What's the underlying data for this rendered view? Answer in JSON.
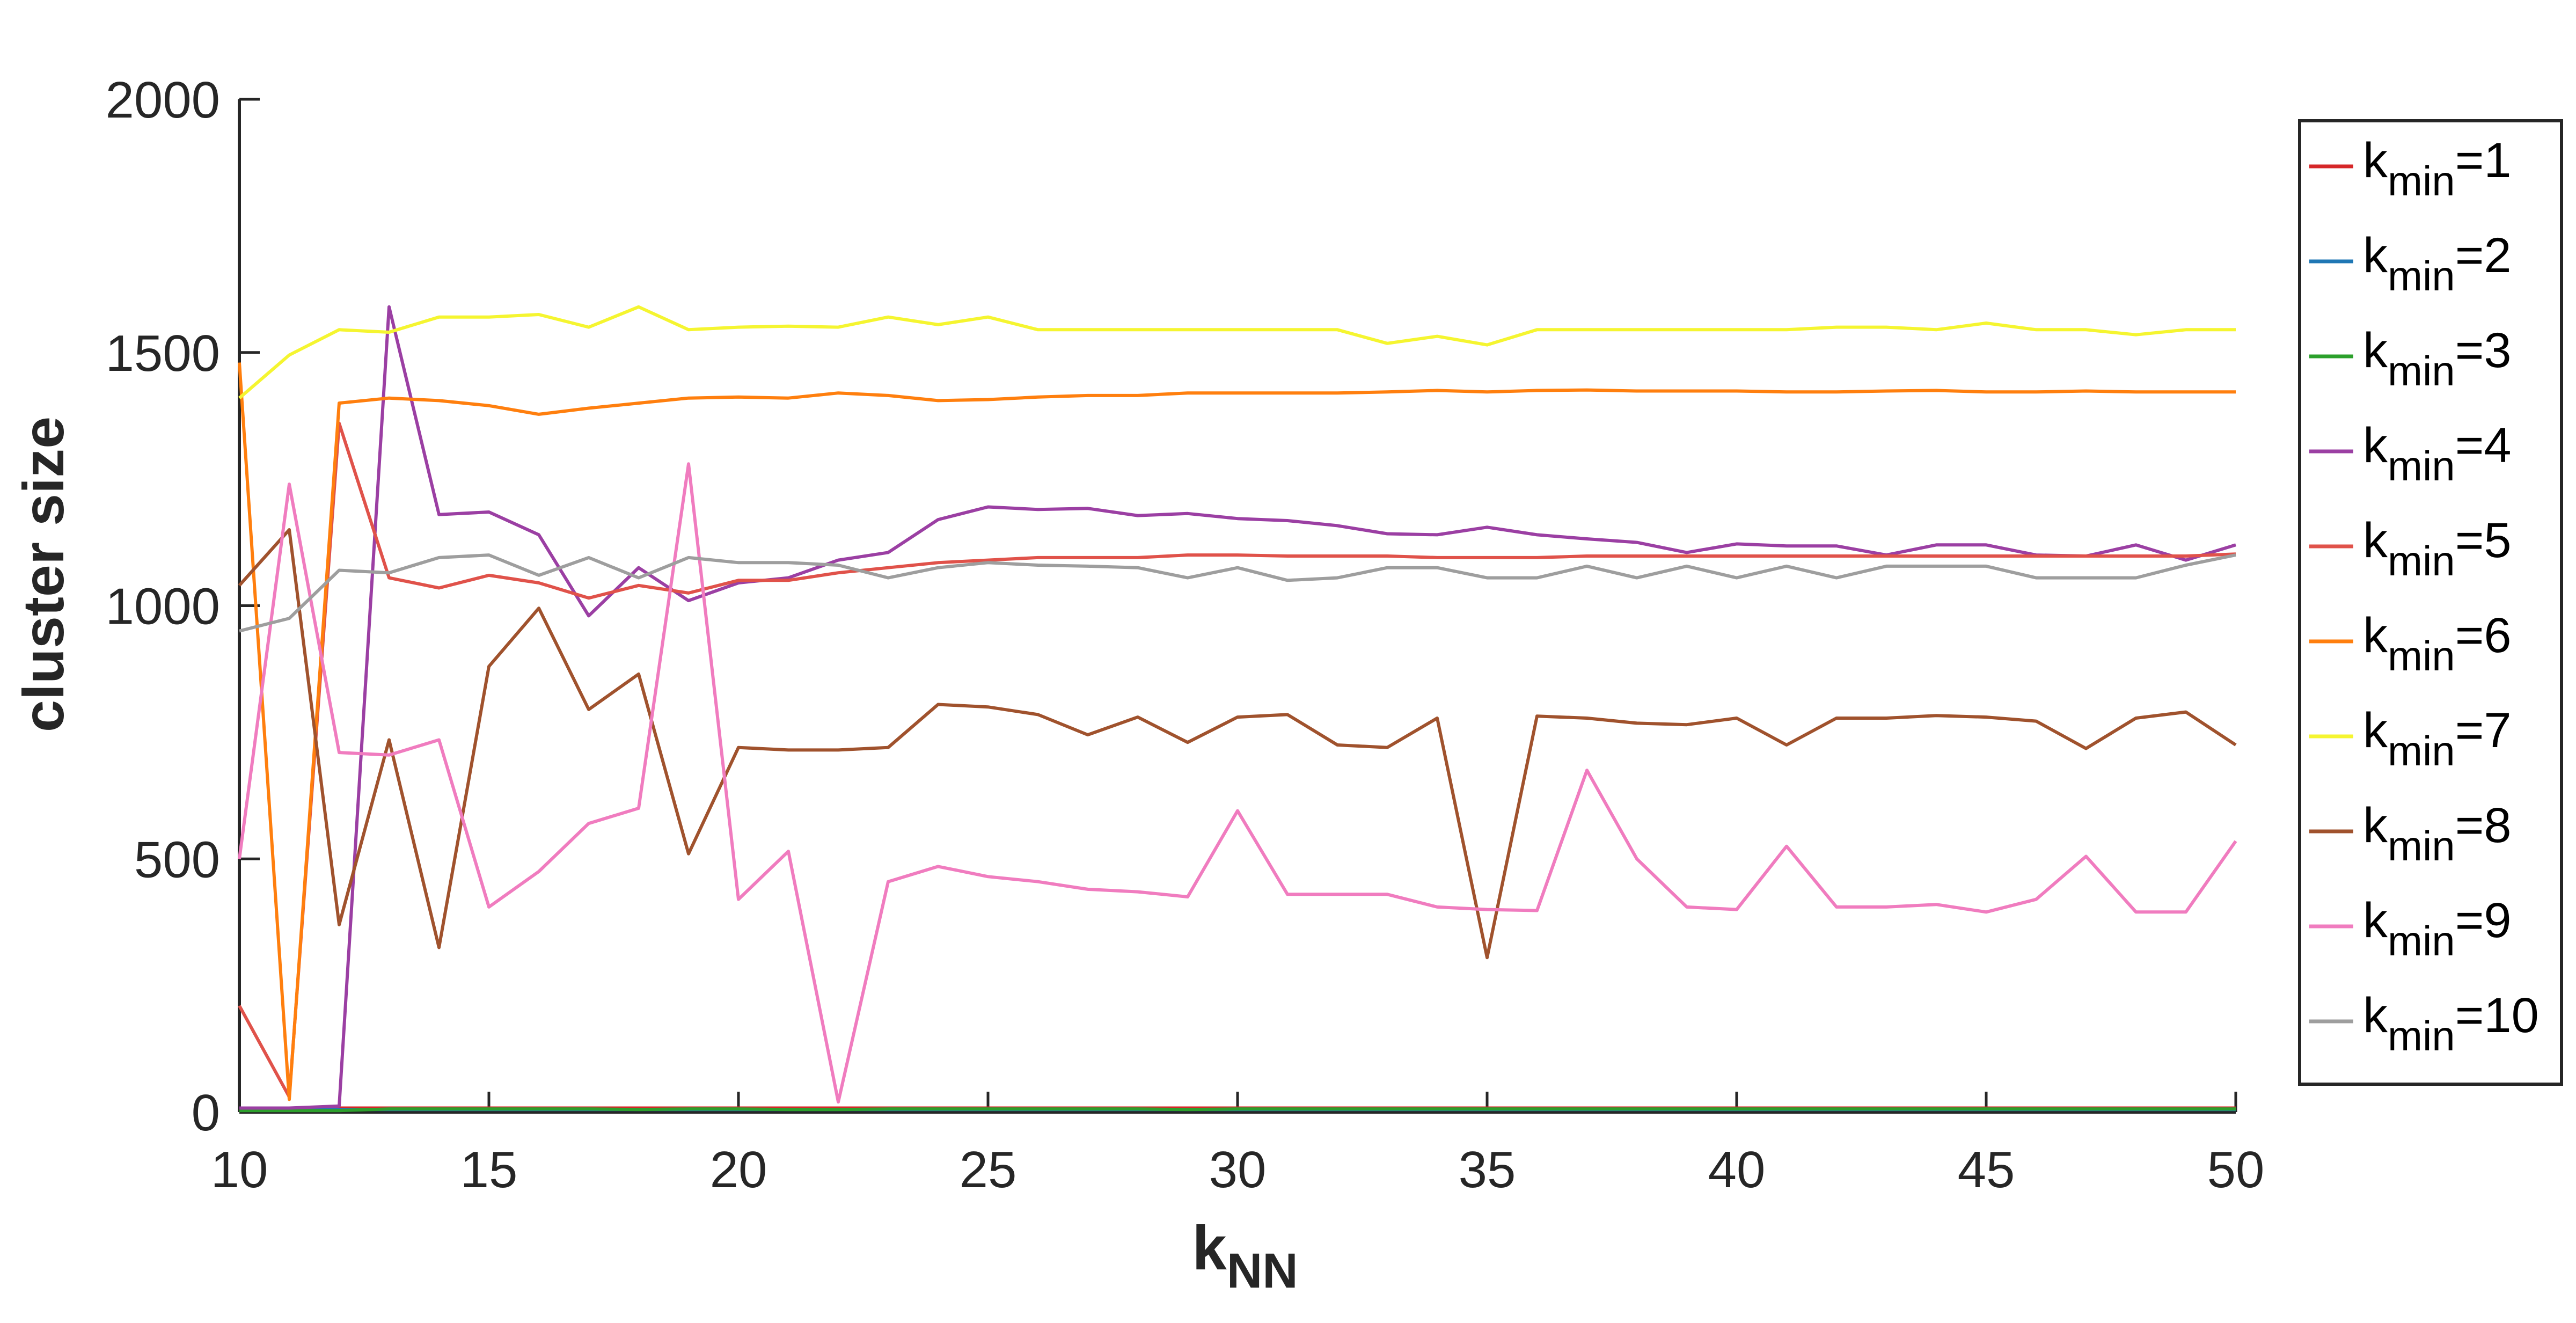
{
  "chart_data": {
    "type": "line",
    "xlabel": "k",
    "xlabel_sub": "NN",
    "ylabel": "cluster size",
    "xlim": [
      10,
      50
    ],
    "ylim": [
      0,
      2000
    ],
    "xticks": [
      "10",
      "15",
      "20",
      "25",
      "30",
      "35",
      "40",
      "45",
      "50"
    ],
    "yticks": [
      "0",
      "500",
      "1000",
      "1500",
      "2000"
    ],
    "grid": false,
    "legend_position": "right-outside",
    "x": [
      10,
      11,
      12,
      13,
      14,
      15,
      16,
      17,
      18,
      19,
      20,
      21,
      22,
      23,
      24,
      25,
      26,
      27,
      28,
      29,
      30,
      31,
      32,
      33,
      34,
      35,
      36,
      37,
      38,
      39,
      40,
      41,
      42,
      43,
      44,
      45,
      46,
      47,
      48,
      49,
      50
    ],
    "series": [
      {
        "name": "k",
        "sub": "min",
        "suffix": "=1",
        "color": "#d62728",
        "values": [
          8,
          8,
          8,
          8,
          8,
          8,
          8,
          8,
          8,
          8,
          8,
          8,
          8,
          8,
          8,
          8,
          8,
          8,
          8,
          8,
          8,
          8,
          8,
          8,
          8,
          8,
          8,
          8,
          8,
          8,
          8,
          8,
          8,
          8,
          8,
          8,
          8,
          8,
          8,
          8,
          8
        ]
      },
      {
        "name": "k",
        "sub": "min",
        "suffix": "=2",
        "color": "#1f77b4",
        "values": [
          5,
          5,
          5,
          5,
          5,
          5,
          5,
          5,
          5,
          5,
          5,
          5,
          5,
          5,
          5,
          5,
          5,
          5,
          5,
          5,
          5,
          5,
          5,
          5,
          5,
          5,
          5,
          5,
          5,
          5,
          5,
          5,
          5,
          5,
          5,
          5,
          5,
          5,
          5,
          5,
          5
        ]
      },
      {
        "name": "k",
        "sub": "min",
        "suffix": "=3",
        "color": "#2ca02c",
        "values": [
          3,
          3,
          3,
          6,
          6,
          6,
          6,
          6,
          5,
          6,
          6,
          5,
          5,
          6,
          6,
          6,
          6,
          6,
          6,
          5,
          6,
          6,
          6,
          6,
          6,
          6,
          6,
          6,
          6,
          6,
          6,
          6,
          6,
          6,
          6,
          6,
          6,
          6,
          6,
          6,
          6
        ]
      },
      {
        "name": "k",
        "sub": "min",
        "suffix": "=4",
        "color": "#9b3fa3",
        "values": [
          8,
          8,
          12,
          1590,
          1180,
          1185,
          1140,
          980,
          1075,
          1010,
          1045,
          1055,
          1090,
          1105,
          1170,
          1195,
          1190,
          1192,
          1178,
          1182,
          1172,
          1168,
          1158,
          1142,
          1140,
          1155,
          1140,
          1132,
          1125,
          1105,
          1122,
          1118,
          1118,
          1100,
          1120,
          1120,
          1100,
          1098,
          1120,
          1090,
          1120
        ]
      },
      {
        "name": "k",
        "sub": "min",
        "suffix": "=5",
        "color": "#e0524a",
        "values": [
          210,
          30,
          1360,
          1055,
          1035,
          1060,
          1045,
          1015,
          1040,
          1025,
          1050,
          1050,
          1065,
          1075,
          1085,
          1090,
          1095,
          1095,
          1095,
          1100,
          1100,
          1098,
          1098,
          1098,
          1095,
          1095,
          1095,
          1098,
          1098,
          1098,
          1098,
          1098,
          1098,
          1098,
          1098,
          1098,
          1098,
          1098,
          1098,
          1098,
          1102
        ]
      },
      {
        "name": "k",
        "sub": "min",
        "suffix": "=6",
        "color": "#ff7f0e",
        "values": [
          1480,
          25,
          1400,
          1410,
          1405,
          1395,
          1378,
          1390,
          1400,
          1410,
          1412,
          1410,
          1420,
          1415,
          1405,
          1407,
          1412,
          1415,
          1415,
          1420,
          1420,
          1420,
          1420,
          1422,
          1425,
          1422,
          1425,
          1426,
          1424,
          1424,
          1424,
          1422,
          1422,
          1424,
          1425,
          1422,
          1422,
          1424,
          1422,
          1422,
          1422
        ]
      },
      {
        "name": "k",
        "sub": "min",
        "suffix": "=7",
        "color": "#f5f530",
        "values": [
          1410,
          1495,
          1545,
          1540,
          1570,
          1570,
          1575,
          1550,
          1590,
          1545,
          1550,
          1552,
          1550,
          1570,
          1555,
          1570,
          1545,
          1545,
          1545,
          1545,
          1545,
          1545,
          1545,
          1518,
          1532,
          1515,
          1545,
          1545,
          1545,
          1545,
          1545,
          1545,
          1550,
          1550,
          1545,
          1558,
          1545,
          1545,
          1535,
          1545,
          1545
        ]
      },
      {
        "name": "k",
        "sub": "min",
        "suffix": "=8",
        "color": "#a0522d",
        "values": [
          1040,
          1150,
          370,
          735,
          325,
          880,
          995,
          795,
          865,
          510,
          720,
          715,
          715,
          720,
          805,
          800,
          785,
          745,
          780,
          730,
          780,
          785,
          725,
          720,
          778,
          305,
          782,
          778,
          768,
          765,
          778,
          725,
          778,
          778,
          783,
          780,
          772,
          718,
          778,
          790,
          725
        ]
      },
      {
        "name": "k",
        "sub": "min",
        "suffix": "=9",
        "color": "#f07cbf",
        "values": [
          500,
          1240,
          710,
          705,
          735,
          405,
          475,
          570,
          600,
          1280,
          420,
          515,
          20,
          455,
          485,
          465,
          455,
          440,
          435,
          425,
          595,
          430,
          430,
          430,
          405,
          400,
          398,
          675,
          500,
          405,
          400,
          525,
          405,
          405,
          410,
          395,
          420,
          505,
          395,
          395,
          535
        ]
      },
      {
        "name": "k",
        "sub": "min",
        "suffix": "=10",
        "color": "#9e9e9e",
        "values": [
          950,
          975,
          1070,
          1065,
          1095,
          1100,
          1060,
          1095,
          1055,
          1095,
          1085,
          1085,
          1080,
          1055,
          1075,
          1085,
          1080,
          1078,
          1075,
          1055,
          1075,
          1050,
          1055,
          1075,
          1075,
          1055,
          1055,
          1078,
          1055,
          1078,
          1055,
          1078,
          1055,
          1078,
          1078,
          1078,
          1055,
          1055,
          1055,
          1080,
          1100
        ]
      }
    ]
  }
}
